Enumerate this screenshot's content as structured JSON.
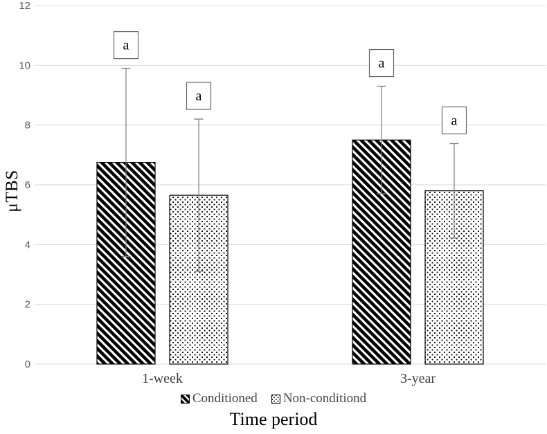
{
  "chart_data": {
    "type": "bar",
    "title": "",
    "xlabel": "Time period",
    "ylabel": "μTBS",
    "categories": [
      "1-week",
      "3-year"
    ],
    "series": [
      {
        "name": "Conditioned",
        "pattern": "diagonal-stripes",
        "values": [
          6.75,
          7.5
        ],
        "errors": [
          3.15,
          1.8
        ],
        "annotations": [
          "a",
          "a"
        ]
      },
      {
        "name": "Non-conditiond",
        "pattern": "dots",
        "values": [
          5.65,
          5.8
        ],
        "errors": [
          2.55,
          1.58
        ],
        "annotations": [
          "a",
          "a"
        ]
      }
    ],
    "ylim": [
      0,
      12
    ],
    "yticks": [
      0,
      2,
      4,
      6,
      8,
      10,
      12
    ],
    "grid": true,
    "legend_position": "bottom",
    "bar_fill": "#ffffff",
    "bar_stroke": "#000000",
    "error_color": "#7f7f7f",
    "gridline_color": "#d9d9d9",
    "annotation_box_border": "#666666"
  }
}
